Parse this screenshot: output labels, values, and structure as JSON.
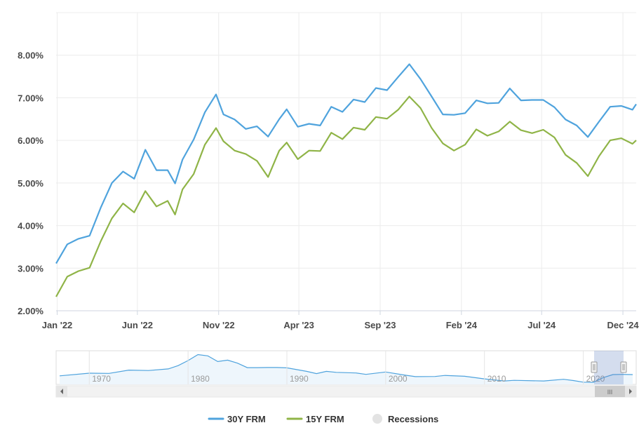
{
  "chart_data": {
    "type": "line",
    "title": "",
    "xlabel": "",
    "ylabel": "",
    "ylim": [
      2.0,
      9.0
    ],
    "x_range": [
      "2021-12-30",
      "2024-12-26"
    ],
    "grid": true,
    "legend_position": "bottom-center",
    "y_ticks": [
      {
        "value": 2,
        "label": "2.00%"
      },
      {
        "value": 3,
        "label": "3.00%"
      },
      {
        "value": 4,
        "label": "4.00%"
      },
      {
        "value": 5,
        "label": "5.00%"
      },
      {
        "value": 6,
        "label": "6.00%"
      },
      {
        "value": 7,
        "label": "7.00%"
      },
      {
        "value": 8,
        "label": "8.00%"
      }
    ],
    "x_ticks": [
      {
        "date": "2022-01-01",
        "label": "Jan '22"
      },
      {
        "date": "2022-06-01",
        "label": "Jun '22"
      },
      {
        "date": "2022-11-01",
        "label": "Nov '22"
      },
      {
        "date": "2023-04-01",
        "label": "Apr '23"
      },
      {
        "date": "2023-09-01",
        "label": "Sep '23"
      },
      {
        "date": "2024-02-01",
        "label": "Feb '24"
      },
      {
        "date": "2024-07-01",
        "label": "Jul '24"
      },
      {
        "date": "2024-12-01",
        "label": "Dec '24"
      }
    ],
    "series": [
      {
        "name": "30Y FRM",
        "color": "#4fa3dd",
        "points": [
          [
            "2021-12-30",
            3.11
          ],
          [
            "2022-01-20",
            3.56
          ],
          [
            "2022-02-10",
            3.69
          ],
          [
            "2022-03-03",
            3.76
          ],
          [
            "2022-03-24",
            4.42
          ],
          [
            "2022-04-14",
            5.0
          ],
          [
            "2022-05-05",
            5.27
          ],
          [
            "2022-05-26",
            5.1
          ],
          [
            "2022-06-16",
            5.78
          ],
          [
            "2022-07-07",
            5.3
          ],
          [
            "2022-07-28",
            5.3
          ],
          [
            "2022-08-11",
            4.99
          ],
          [
            "2022-08-25",
            5.55
          ],
          [
            "2022-09-15",
            6.02
          ],
          [
            "2022-10-06",
            6.66
          ],
          [
            "2022-10-27",
            7.08
          ],
          [
            "2022-11-10",
            6.61
          ],
          [
            "2022-12-01",
            6.49
          ],
          [
            "2022-12-22",
            6.27
          ],
          [
            "2023-01-12",
            6.33
          ],
          [
            "2023-02-02",
            6.09
          ],
          [
            "2023-02-23",
            6.5
          ],
          [
            "2023-03-09",
            6.73
          ],
          [
            "2023-03-30",
            6.32
          ],
          [
            "2023-04-20",
            6.39
          ],
          [
            "2023-05-11",
            6.35
          ],
          [
            "2023-06-01",
            6.79
          ],
          [
            "2023-06-22",
            6.67
          ],
          [
            "2023-07-13",
            6.96
          ],
          [
            "2023-08-03",
            6.9
          ],
          [
            "2023-08-24",
            7.23
          ],
          [
            "2023-09-14",
            7.18
          ],
          [
            "2023-10-05",
            7.49
          ],
          [
            "2023-10-26",
            7.79
          ],
          [
            "2023-11-16",
            7.44
          ],
          [
            "2023-12-07",
            7.03
          ],
          [
            "2023-12-28",
            6.61
          ],
          [
            "2024-01-18",
            6.6
          ],
          [
            "2024-02-08",
            6.64
          ],
          [
            "2024-02-29",
            6.94
          ],
          [
            "2024-03-21",
            6.87
          ],
          [
            "2024-04-11",
            6.88
          ],
          [
            "2024-05-02",
            7.22
          ],
          [
            "2024-05-23",
            6.94
          ],
          [
            "2024-06-13",
            6.95
          ],
          [
            "2024-07-04",
            6.95
          ],
          [
            "2024-07-25",
            6.78
          ],
          [
            "2024-08-15",
            6.49
          ],
          [
            "2024-09-05",
            6.35
          ],
          [
            "2024-09-26",
            6.08
          ],
          [
            "2024-10-17",
            6.44
          ],
          [
            "2024-11-07",
            6.79
          ],
          [
            "2024-11-28",
            6.81
          ],
          [
            "2024-12-19",
            6.72
          ],
          [
            "2024-12-26",
            6.85
          ]
        ]
      },
      {
        "name": "15Y FRM",
        "color": "#8fb447",
        "points": [
          [
            "2021-12-30",
            2.33
          ],
          [
            "2022-01-20",
            2.8
          ],
          [
            "2022-02-10",
            2.93
          ],
          [
            "2022-03-03",
            3.01
          ],
          [
            "2022-03-24",
            3.63
          ],
          [
            "2022-04-14",
            4.17
          ],
          [
            "2022-05-05",
            4.52
          ],
          [
            "2022-05-26",
            4.31
          ],
          [
            "2022-06-16",
            4.81
          ],
          [
            "2022-07-07",
            4.45
          ],
          [
            "2022-07-28",
            4.58
          ],
          [
            "2022-08-11",
            4.26
          ],
          [
            "2022-08-25",
            4.85
          ],
          [
            "2022-09-15",
            5.21
          ],
          [
            "2022-10-06",
            5.9
          ],
          [
            "2022-10-27",
            6.29
          ],
          [
            "2022-11-10",
            5.98
          ],
          [
            "2022-12-01",
            5.76
          ],
          [
            "2022-12-22",
            5.68
          ],
          [
            "2023-01-12",
            5.52
          ],
          [
            "2023-02-02",
            5.14
          ],
          [
            "2023-02-23",
            5.76
          ],
          [
            "2023-03-09",
            5.95
          ],
          [
            "2023-03-30",
            5.56
          ],
          [
            "2023-04-20",
            5.76
          ],
          [
            "2023-05-11",
            5.75
          ],
          [
            "2023-06-01",
            6.18
          ],
          [
            "2023-06-22",
            6.03
          ],
          [
            "2023-07-13",
            6.3
          ],
          [
            "2023-08-03",
            6.25
          ],
          [
            "2023-08-24",
            6.55
          ],
          [
            "2023-09-14",
            6.51
          ],
          [
            "2023-10-05",
            6.72
          ],
          [
            "2023-10-26",
            7.03
          ],
          [
            "2023-11-16",
            6.76
          ],
          [
            "2023-12-07",
            6.29
          ],
          [
            "2023-12-28",
            5.93
          ],
          [
            "2024-01-18",
            5.76
          ],
          [
            "2024-02-08",
            5.9
          ],
          [
            "2024-02-29",
            6.26
          ],
          [
            "2024-03-21",
            6.11
          ],
          [
            "2024-04-11",
            6.21
          ],
          [
            "2024-05-02",
            6.44
          ],
          [
            "2024-05-23",
            6.24
          ],
          [
            "2024-06-13",
            6.17
          ],
          [
            "2024-07-04",
            6.25
          ],
          [
            "2024-07-25",
            6.07
          ],
          [
            "2024-08-15",
            5.66
          ],
          [
            "2024-09-05",
            5.47
          ],
          [
            "2024-09-26",
            5.16
          ],
          [
            "2024-10-17",
            5.63
          ],
          [
            "2024-11-07",
            6.0
          ],
          [
            "2024-11-28",
            6.05
          ],
          [
            "2024-12-19",
            5.92
          ],
          [
            "2024-12-26",
            6.0
          ]
        ]
      }
    ],
    "navigator": {
      "ticks": [
        "1970",
        "1980",
        "1990",
        "2000",
        "2010",
        "2020"
      ],
      "selected_range": [
        "2022",
        "2024"
      ],
      "scroll_grip": "III"
    },
    "legend": [
      {
        "name": "30Y FRM",
        "color": "#4fa3dd",
        "marker": "line"
      },
      {
        "name": "15Y FRM",
        "color": "#8fb447",
        "marker": "line"
      },
      {
        "name": "Recessions",
        "color": "#e3e3e3",
        "marker": "dot"
      }
    ]
  }
}
